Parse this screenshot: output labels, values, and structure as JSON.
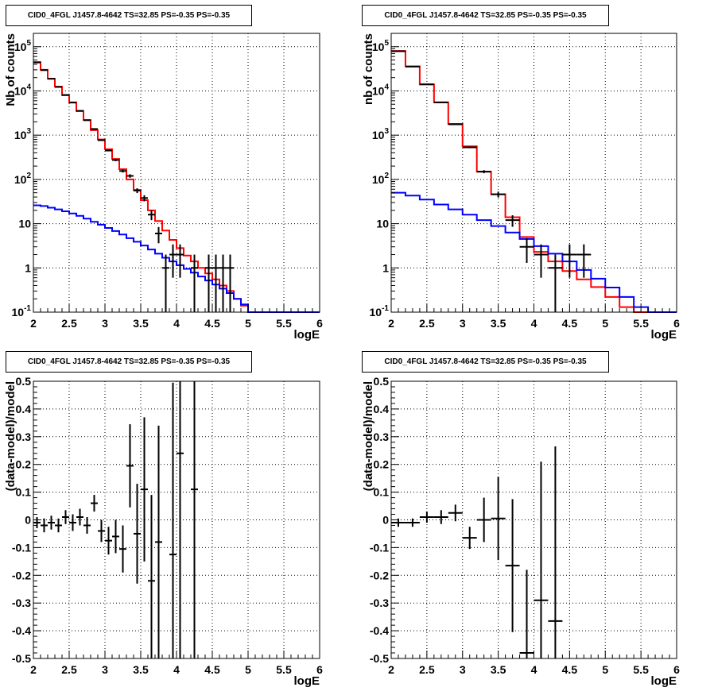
{
  "panels": [
    {
      "title": "CID0_4FGL J1457.8-4642 TS=32.85 PS=-0.35 PS=-0.35",
      "xlabel": "logE",
      "ylabel": "Nb of counts",
      "chart_data": {
        "type": "line",
        "title": "CID0_4FGL J1457.8-4642 TS=32.85 PS=-0.35 PS=-0.35",
        "xlabel": "logE",
        "ylabel": "Nb of counts",
        "log_y": true,
        "xlim": [
          2,
          6
        ],
        "ylim": [
          0.1,
          200000
        ],
        "grid": true,
        "x_ticks": [
          "2",
          "2.5",
          "3",
          "3.5",
          "4",
          "4.5",
          "5",
          "5.5",
          "6"
        ],
        "y_ticks": [
          "10^-1",
          "1",
          "10",
          "10^2",
          "10^3",
          "10^4",
          "10^5"
        ],
        "bin_edges": [
          2.0,
          2.1,
          2.2,
          2.3,
          2.4,
          2.5,
          2.6,
          2.7,
          2.8,
          2.9,
          3.0,
          3.1,
          3.2,
          3.3,
          3.4,
          3.5,
          3.6,
          3.7,
          3.8,
          3.9,
          4.0,
          4.1,
          4.2,
          4.3,
          4.4,
          4.5,
          4.6,
          4.7,
          4.8,
          4.9,
          5.0,
          5.1,
          5.2,
          5.3,
          5.4,
          5.5,
          5.6,
          5.7,
          5.8,
          5.9,
          6.0
        ],
        "series": [
          {
            "color": "#ff0000",
            "style": "step",
            "values": [
              45000,
              30000,
              19000,
              12500,
              8000,
              5500,
              3500,
              2200,
              1300,
              800,
              480,
              290,
              170,
              100,
              58,
              34,
              20,
              11.5,
              7,
              4.3,
              2.8,
              1.9,
              1.4,
              1.0,
              0.75,
              0.55,
              0.4,
              0.3,
              0.2,
              0.14,
              0.1,
              0.1,
              0.1,
              0.1,
              0.1,
              0.1,
              0.1,
              0.1,
              0.1,
              0.1
            ]
          },
          {
            "color": "#0000ff",
            "style": "step",
            "values": [
              26,
              25,
              23,
              21,
              19,
              17,
              15,
              13,
              11,
              9.5,
              8,
              6.8,
              5.7,
              4.7,
              3.9,
              3.2,
              2.6,
              2.1,
              1.7,
              1.4,
              1.15,
              0.95,
              0.78,
              0.64,
              0.52,
              0.42,
              0.34,
              0.27,
              0.2,
              0.15,
              0.1,
              0.1,
              0.1,
              0.1,
              0.1,
              0.1,
              0.1,
              0.1,
              0.1,
              0.1
            ]
          },
          {
            "color": "#000000",
            "style": "errorbar",
            "points": [
              {
                "x": 2.05,
                "y": 44000,
                "lo": 43790,
                "hi": 44210
              },
              {
                "x": 2.15,
                "y": 29500,
                "lo": 29330,
                "hi": 29670
              },
              {
                "x": 2.25,
                "y": 18800,
                "lo": 18660,
                "hi": 18940
              },
              {
                "x": 2.35,
                "y": 12300,
                "lo": 12190,
                "hi": 12410
              },
              {
                "x": 2.45,
                "y": 8100,
                "lo": 8010,
                "hi": 8190
              },
              {
                "x": 2.55,
                "y": 5450,
                "lo": 5380,
                "hi": 5520
              },
              {
                "x": 2.65,
                "y": 3550,
                "lo": 3490,
                "hi": 3610
              },
              {
                "x": 2.75,
                "y": 2180,
                "lo": 2130,
                "hi": 2230
              },
              {
                "x": 2.85,
                "y": 1380,
                "lo": 1340,
                "hi": 1420
              },
              {
                "x": 2.95,
                "y": 770,
                "lo": 740,
                "hi": 800
              },
              {
                "x": 3.05,
                "y": 450,
                "lo": 430,
                "hi": 470
              },
              {
                "x": 3.15,
                "y": 275,
                "lo": 258,
                "hi": 292
              },
              {
                "x": 3.25,
                "y": 155,
                "lo": 143,
                "hi": 167
              },
              {
                "x": 3.35,
                "y": 120,
                "lo": 109,
                "hi": 131
              },
              {
                "x": 3.45,
                "y": 56,
                "lo": 49,
                "hi": 63
              },
              {
                "x": 3.55,
                "y": 38,
                "lo": 32,
                "hi": 44
              },
              {
                "x": 3.65,
                "y": 16,
                "lo": 12,
                "hi": 20
              },
              {
                "x": 3.75,
                "y": 6,
                "lo": 3.6,
                "hi": 8.4
              },
              {
                "x": 3.85,
                "y": 1,
                "lo": 0.1,
                "hi": 2
              },
              {
                "x": 3.95,
                "y": 2,
                "lo": 0.6,
                "hi": 3.4
              },
              {
                "x": 4.05,
                "y": 2,
                "lo": 0.6,
                "hi": 3.4
              },
              {
                "x": 4.25,
                "y": 1,
                "lo": 0.1,
                "hi": 2
              },
              {
                "x": 4.45,
                "y": 1,
                "lo": 0.1,
                "hi": 2
              },
              {
                "x": 4.55,
                "y": 1,
                "lo": 0.1,
                "hi": 2
              },
              {
                "x": 4.65,
                "y": 1,
                "lo": 0.1,
                "hi": 2
              },
              {
                "x": 4.75,
                "y": 1,
                "lo": 0.1,
                "hi": 2
              }
            ]
          }
        ]
      }
    },
    {
      "title": "CID0_4FGL J1457.8-4642 TS=32.85 PS=-0.35 PS=-0.35",
      "xlabel": "logE",
      "ylabel": "nb of counts",
      "chart_data": {
        "type": "line",
        "title": "CID0_4FGL J1457.8-4642 TS=32.85 PS=-0.35 PS=-0.35",
        "xlabel": "logE",
        "ylabel": "nb of counts",
        "log_y": true,
        "xlim": [
          2,
          6
        ],
        "ylim": [
          0.1,
          200000
        ],
        "grid": true,
        "x_ticks": [
          "2",
          "2.5",
          "3",
          "3.5",
          "4",
          "4.5",
          "5",
          "5.5",
          "6"
        ],
        "y_ticks": [
          "10^-1",
          "1",
          "10",
          "10^2",
          "10^3",
          "10^4",
          "10^5"
        ],
        "bin_edges": [
          2.0,
          2.2,
          2.4,
          2.6,
          2.8,
          3.0,
          3.2,
          3.4,
          3.6,
          3.8,
          4.0,
          4.2,
          4.4,
          4.6,
          4.8,
          5.0,
          5.2,
          5.4,
          5.6,
          5.8,
          6.0
        ],
        "series": [
          {
            "color": "#ff0000",
            "style": "step",
            "values": [
              80000,
              36000,
              14000,
              5500,
              1800,
              560,
              150,
              46,
              14,
              5,
              2.3,
              1.4,
              0.85,
              0.55,
              0.37,
              0.22,
              0.13,
              0.1,
              0.1,
              0.1
            ]
          },
          {
            "color": "#0000ff",
            "style": "step",
            "values": [
              50,
              43,
              35,
              27,
              21,
              16,
              12,
              8.8,
              6.3,
              4.5,
              3.1,
              2.1,
              1.4,
              0.9,
              0.57,
              0.36,
              0.22,
              0.13,
              0.1,
              0.1
            ]
          },
          {
            "color": "#000000",
            "style": "errorbar",
            "points": [
              {
                "x": 2.1,
                "y": 79000,
                "lo": 78720,
                "hi": 79280
              },
              {
                "x": 2.3,
                "y": 35500,
                "lo": 35310,
                "hi": 35690
              },
              {
                "x": 2.5,
                "y": 14100,
                "lo": 13980,
                "hi": 14220
              },
              {
                "x": 2.7,
                "y": 5520,
                "lo": 5450,
                "hi": 5590
              },
              {
                "x": 2.9,
                "y": 1760,
                "lo": 1720,
                "hi": 1800
              },
              {
                "x": 3.1,
                "y": 530,
                "lo": 507,
                "hi": 553
              },
              {
                "x": 3.3,
                "y": 150,
                "lo": 138,
                "hi": 162
              },
              {
                "x": 3.5,
                "y": 46,
                "lo": 39,
                "hi": 53
              },
              {
                "x": 3.7,
                "y": 12,
                "lo": 8.5,
                "hi": 15.5
              },
              {
                "x": 3.9,
                "y": 3,
                "lo": 1.3,
                "hi": 4.7
              },
              {
                "x": 4.1,
                "y": 2,
                "lo": 0.6,
                "hi": 3.4
              },
              {
                "x": 4.3,
                "y": 1,
                "lo": 0.1,
                "hi": 2
              },
              {
                "x": 4.5,
                "y": 2,
                "lo": 0.6,
                "hi": 3.4
              },
              {
                "x": 4.7,
                "y": 2,
                "lo": 0.6,
                "hi": 3.4
              }
            ]
          }
        ]
      }
    },
    {
      "title": "CID0_4FGL J1457.8-4642 TS=32.85 PS=-0.35 PS=-0.35",
      "xlabel": "logE",
      "ylabel": "(data-model)/model",
      "chart_data": {
        "type": "scatter",
        "title": "CID0_4FGL J1457.8-4642 TS=32.85 PS=-0.35 PS=-0.35",
        "xlabel": "logE",
        "ylabel": "(data-model)/model",
        "xlim": [
          2,
          6
        ],
        "ylim": [
          -0.5,
          0.5
        ],
        "grid": true,
        "x_ticks": [
          "2",
          "2.5",
          "3",
          "3.5",
          "4",
          "4.5",
          "5",
          "5.5",
          "6"
        ],
        "y_ticks": [
          "-0.5",
          "-0.4",
          "-0.3",
          "-0.2",
          "-0.1",
          "0",
          "0.1",
          "0.2",
          "0.3",
          "0.4",
          "0.5"
        ],
        "series": [
          {
            "color": "#000000",
            "style": "errorbar",
            "halfwidth": 0.05,
            "points": [
              {
                "x": 2.05,
                "y": -0.01,
                "err": 0.02
              },
              {
                "x": 2.15,
                "y": -0.02,
                "err": 0.025
              },
              {
                "x": 2.25,
                "y": -0.01,
                "err": 0.025
              },
              {
                "x": 2.35,
                "y": -0.02,
                "err": 0.025
              },
              {
                "x": 2.45,
                "y": 0.01,
                "err": 0.025
              },
              {
                "x": 2.55,
                "y": -0.01,
                "err": 0.03
              },
              {
                "x": 2.65,
                "y": 0.01,
                "err": 0.03
              },
              {
                "x": 2.75,
                "y": -0.02,
                "err": 0.03
              },
              {
                "x": 2.85,
                "y": 0.06,
                "err": 0.03
              },
              {
                "x": 2.95,
                "y": -0.04,
                "err": 0.04
              },
              {
                "x": 3.05,
                "y": -0.075,
                "err": 0.05
              },
              {
                "x": 3.15,
                "y": -0.06,
                "err": 0.06
              },
              {
                "x": 3.25,
                "y": -0.105,
                "err": 0.085
              },
              {
                "x": 3.35,
                "y": 0.195,
                "err": 0.15
              },
              {
                "x": 3.45,
                "y": -0.05,
                "err": 0.18
              },
              {
                "x": 3.55,
                "y": 0.11,
                "err": 0.26
              },
              {
                "x": 3.65,
                "y": -0.22,
                "err": 0.31
              },
              {
                "x": 3.75,
                "y": -0.08,
                "err": 0.42
              },
              {
                "x": 3.95,
                "y": -0.125,
                "err": 0.62
              },
              {
                "x": 4.05,
                "y": 0.24,
                "err": 0.75
              },
              {
                "x": 4.25,
                "y": 0.11,
                "err": 0.9
              }
            ]
          }
        ]
      }
    },
    {
      "title": "CID0_4FGL J1457.8-4642 TS=32.85 PS=-0.35 PS=-0.35",
      "xlabel": "logE",
      "ylabel": "(data-model)/model",
      "chart_data": {
        "type": "scatter",
        "title": "CID0_4FGL J1457.8-4642 TS=32.85 PS=-0.35 PS=-0.35",
        "xlabel": "logE",
        "ylabel": "(data-model)/model",
        "xlim": [
          2,
          6
        ],
        "ylim": [
          -0.5,
          0.5
        ],
        "grid": true,
        "x_ticks": [
          "2",
          "2.5",
          "3",
          "3.5",
          "4",
          "4.5",
          "5",
          "5.5",
          "6"
        ],
        "y_ticks": [
          "-0.5",
          "-0.4",
          "-0.3",
          "-0.2",
          "-0.1",
          "0",
          "0.1",
          "0.2",
          "0.3",
          "0.4",
          "0.5"
        ],
        "series": [
          {
            "color": "#000000",
            "style": "errorbar",
            "halfwidth": 0.1,
            "points": [
              {
                "x": 2.1,
                "y": -0.01,
                "err": 0.015
              },
              {
                "x": 2.3,
                "y": -0.01,
                "err": 0.015
              },
              {
                "x": 2.5,
                "y": 0.01,
                "err": 0.02
              },
              {
                "x": 2.7,
                "y": 0.01,
                "err": 0.025
              },
              {
                "x": 2.9,
                "y": 0.025,
                "err": 0.03
              },
              {
                "x": 3.1,
                "y": -0.065,
                "err": 0.04
              },
              {
                "x": 3.3,
                "y": 0.0,
                "err": 0.08
              },
              {
                "x": 3.5,
                "y": 0.005,
                "err": 0.15
              },
              {
                "x": 3.7,
                "y": -0.165,
                "err": 0.24
              },
              {
                "x": 3.9,
                "y": -0.48,
                "err": 0.3
              },
              {
                "x": 4.1,
                "y": -0.29,
                "err": 0.5
              },
              {
                "x": 4.3,
                "y": -0.365,
                "err": 0.63
              }
            ]
          }
        ]
      }
    }
  ]
}
